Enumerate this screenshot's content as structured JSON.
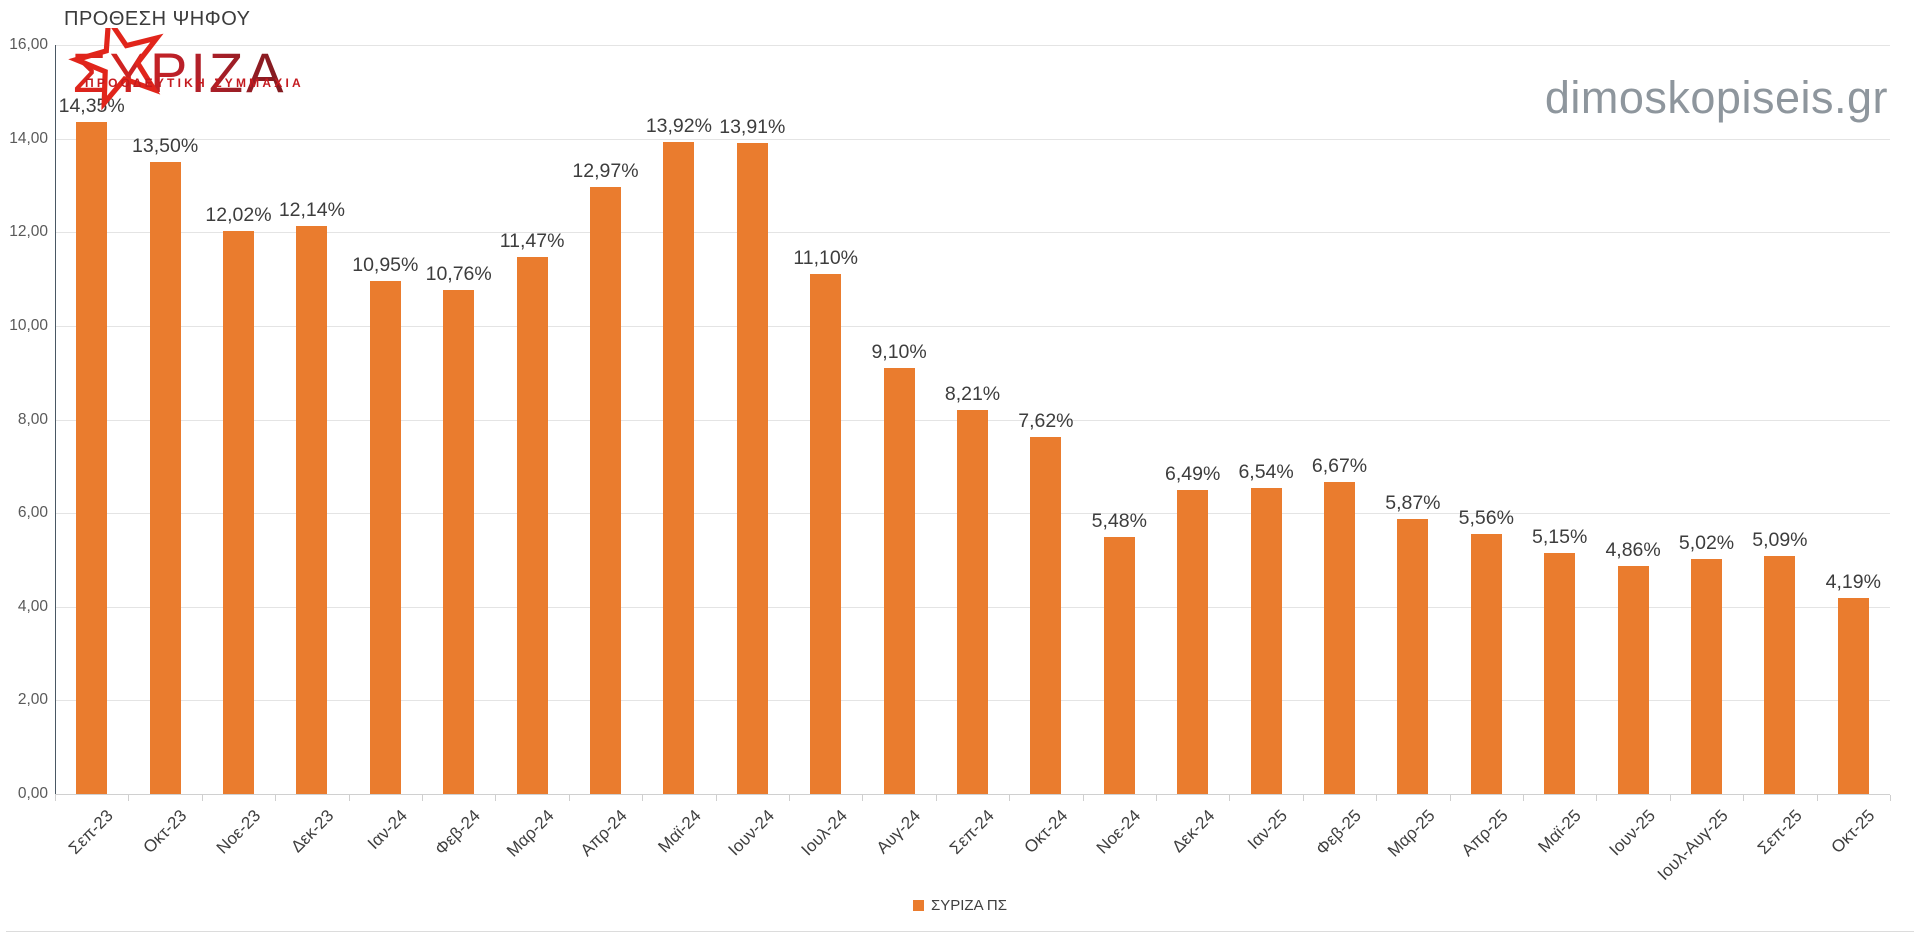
{
  "title": "ΠΡΟΘΕΣΗ ΨΗΦΟΥ",
  "watermark": "dimoskopiseis.gr",
  "logo": {
    "name": "ΣΥΡΙΖΑ",
    "subtitle": "ΠΡΟΟΔΕΥΤΙΚΗ ΣΥΜΜΑΧΙΑ",
    "star_icon": "red-star-icon",
    "color_bright": "#e1251b",
    "color_dark": "#7f1b20"
  },
  "legend": {
    "label": "ΣΥΡΙΖΑ ΠΣ",
    "color": "#ea7c2e"
  },
  "colors": {
    "bar": "#ea7c2e",
    "grid": "#e4e4e4",
    "axis_line": "#4a5864",
    "data_label": "#3d3d3d",
    "tick_label": "#595959",
    "watermark": "#8e969d"
  },
  "chart_data": {
    "type": "bar",
    "title": "ΠΡΟΘΕΣΗ ΨΗΦΟΥ",
    "series_name": "ΣΥΡΙΖΑ ΠΣ",
    "categories": [
      "Σεπ-23",
      "Οκτ-23",
      "Νοε-23",
      "Δεκ-23",
      "Ιαν-24",
      "Φεβ-24",
      "Μαρ-24",
      "Απρ-24",
      "Μαϊ-24",
      "Ιουν-24",
      "Ιουλ-24",
      "Αυγ-24",
      "Σεπ-24",
      "Οκτ-24",
      "Νοε-24",
      "Δεκ-24",
      "Ιαν-25",
      "Φεβ-25",
      "Μαρ-25",
      "Απρ-25",
      "Μαϊ-25",
      "Ιουν-25",
      "Ιουλ-Αυγ-25",
      "Σεπ-25",
      "Οκτ-25"
    ],
    "values": [
      14.35,
      13.5,
      12.02,
      12.14,
      10.95,
      10.76,
      11.47,
      12.97,
      13.92,
      13.91,
      11.1,
      9.1,
      8.21,
      7.62,
      5.48,
      6.49,
      6.54,
      6.67,
      5.87,
      5.56,
      5.15,
      4.86,
      5.02,
      5.09,
      4.19
    ],
    "labels": [
      "14,35%",
      "13,50%",
      "12,02%",
      "12,14%",
      "10,95%",
      "10,76%",
      "11,47%",
      "12,97%",
      "13,92%",
      "13,91%",
      "11,10%",
      "9,10%",
      "8,21%",
      "7,62%",
      "5,48%",
      "6,49%",
      "6,54%",
      "6,67%",
      "5,87%",
      "5,56%",
      "5,15%",
      "4,86%",
      "5,02%",
      "5,09%",
      "4,19%"
    ],
    "ylim": [
      0,
      16
    ],
    "yticks": [
      {
        "value": 0,
        "label": "0,00"
      },
      {
        "value": 2,
        "label": "2,00"
      },
      {
        "value": 4,
        "label": "4,00"
      },
      {
        "value": 6,
        "label": "6,00"
      },
      {
        "value": 8,
        "label": "8,00"
      },
      {
        "value": 10,
        "label": "10,00"
      },
      {
        "value": 12,
        "label": "12,00"
      },
      {
        "value": 14,
        "label": "14,00"
      },
      {
        "value": 16,
        "label": "16,00"
      }
    ],
    "grid": true,
    "legend_position": "bottom-center"
  }
}
